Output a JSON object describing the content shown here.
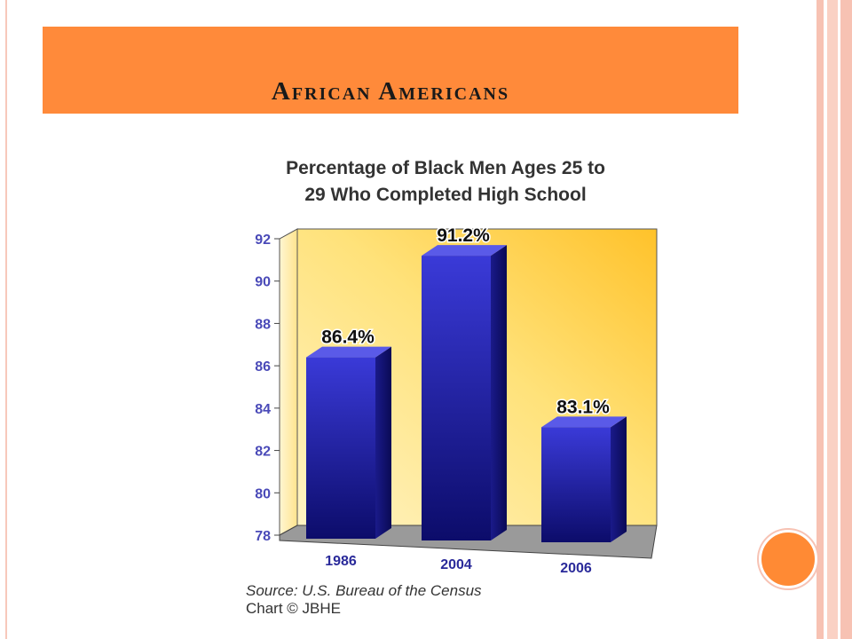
{
  "slide": {
    "title": "African Americans"
  },
  "colors": {
    "title_bar": "#ff8a3a",
    "accent_dot": "#ff8a34",
    "bars": "#2a2aa8",
    "plot_bg": "#ffd86a"
  },
  "chart_data": {
    "type": "bar",
    "title": "Percentage of Black Men Ages 25 to 29 Who Completed High School",
    "title_lines": [
      "Percentage of Black Men Ages 25 to",
      "29 Who Completed High School"
    ],
    "categories": [
      "1986",
      "2004",
      "2006"
    ],
    "values": [
      86.4,
      91.2,
      83.1
    ],
    "data_labels": [
      "86.4%",
      "91.2%",
      "83.1%"
    ],
    "yticks": [
      "78",
      "80",
      "82",
      "84",
      "86",
      "88",
      "90",
      "92"
    ],
    "ylim": [
      78,
      92
    ],
    "xlabel": "",
    "ylabel": "",
    "grid": false,
    "style": "3d"
  },
  "source": {
    "line1": "Source: U.S. Bureau of the Census",
    "line2": "Chart © JBHE"
  }
}
